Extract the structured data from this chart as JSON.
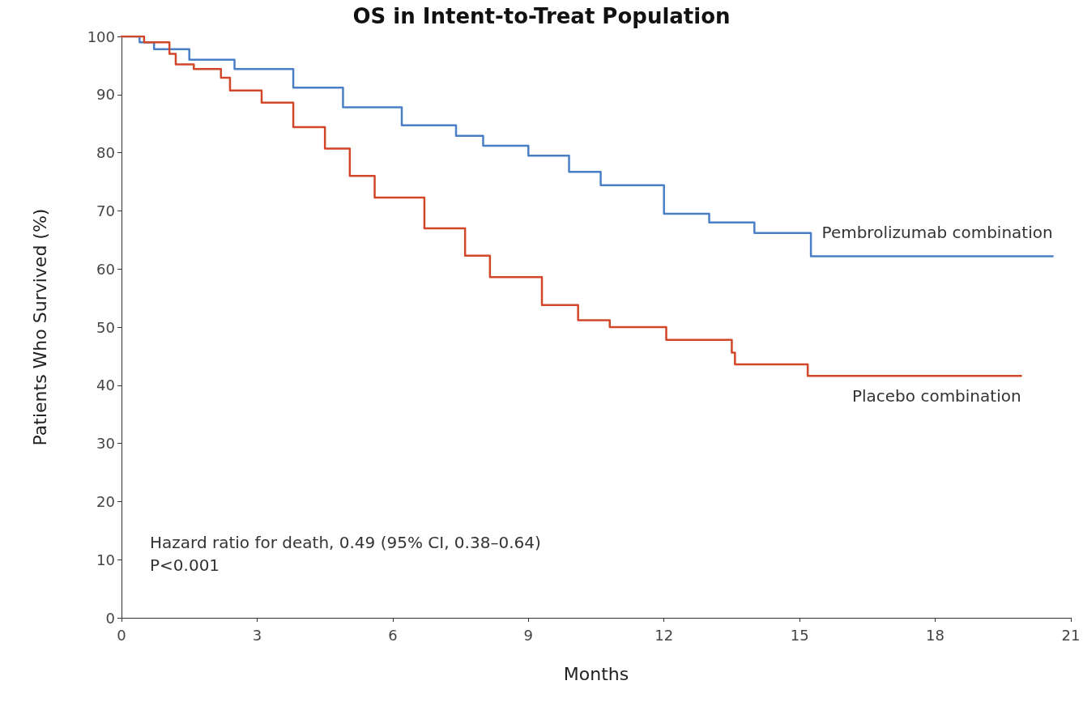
{
  "chart_data": {
    "type": "step",
    "title": "OS in Intent-to-Treat Population",
    "xlabel": "Months",
    "ylabel": "Patients Who Survived (%)",
    "annotations": [
      "Hazard ratio for death, 0.49 (95% CI, 0.38–0.64)",
      "P<0.001"
    ],
    "xlim": [
      0,
      21
    ],
    "xticks": [
      0,
      3,
      6,
      9,
      12,
      15,
      18,
      21
    ],
    "ylim": [
      0,
      100
    ],
    "yticks": [
      0,
      10,
      20,
      30,
      40,
      50,
      60,
      70,
      80,
      90,
      100
    ],
    "grid": false,
    "marker": "none",
    "line_style": "solid",
    "series": [
      {
        "name": "Pembrolizumab combination",
        "color": "#4a7fc8",
        "x": [
          0,
          0.4,
          0.72,
          1.5,
          2.5,
          3.8,
          4.9,
          6.2,
          7.4,
          8.0,
          9.0,
          9.9,
          10.6,
          12.0,
          13.0,
          14.0,
          15.25,
          20.6
        ],
        "values": [
          100,
          99,
          97.8,
          96,
          94.4,
          91.2,
          87.8,
          84.7,
          82.9,
          81.2,
          79.5,
          76.7,
          74.4,
          69.5,
          68,
          66.2,
          62.2,
          62.2
        ]
      },
      {
        "name": "Placebo combination",
        "color": "#d2472a",
        "x": [
          0,
          0.5,
          1.06,
          1.2,
          1.6,
          2.2,
          2.4,
          3.1,
          3.8,
          4.5,
          5.05,
          5.6,
          6.2,
          6.7,
          7.6,
          8.15,
          9.3,
          10.1,
          10.8,
          12.05,
          13.5,
          13.57,
          15.18,
          19.9
        ],
        "values": [
          100,
          99,
          97,
          95.2,
          94.4,
          92.9,
          90.7,
          88.6,
          84.4,
          80.7,
          76,
          72.3,
          72.3,
          67,
          62.3,
          58.6,
          53.8,
          51.2,
          50,
          47.8,
          45.6,
          43.6,
          41.6,
          41.6
        ]
      }
    ]
  }
}
